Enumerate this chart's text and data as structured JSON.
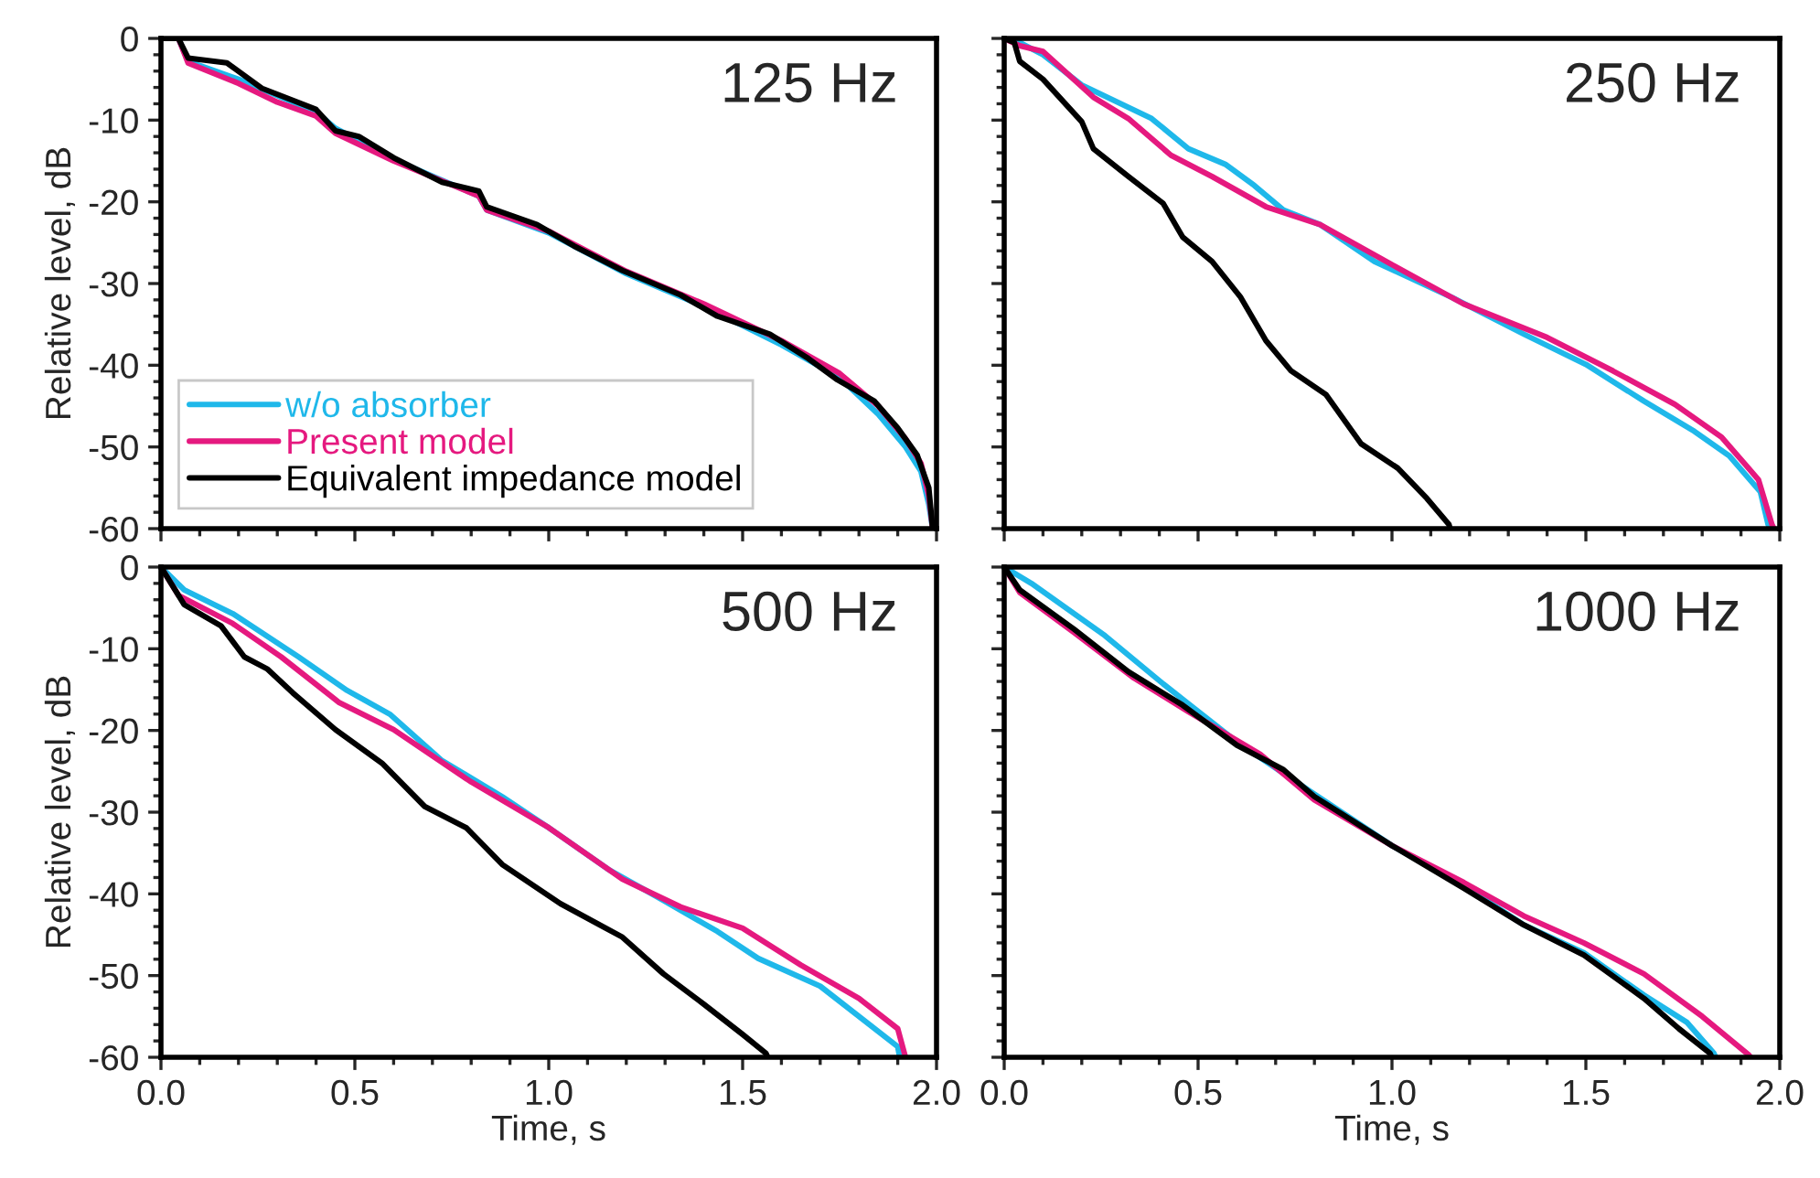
{
  "chart_data": [
    {
      "type": "line",
      "annotations": [
        "125 Hz"
      ],
      "ylabel": "Relative level, dB",
      "xlim": [
        0,
        2
      ],
      "ylim": [
        -60,
        0
      ],
      "xticks": [
        0,
        0.5,
        1,
        1.5,
        2
      ],
      "yticks": [
        -60,
        -50,
        -40,
        -30,
        -20,
        -10,
        0
      ],
      "tick_labels": "y",
      "legend": "bottom left",
      "series": [
        {
          "name": "w/o absorber",
          "color": "#1fb8ea",
          "x": [
            0,
            0.045,
            0.07,
            0.2,
            0.4,
            0.45,
            0.6,
            0.82,
            0.84,
            1.0,
            1.2,
            1.4,
            1.6,
            1.75,
            1.85,
            1.92,
            1.96,
            1.98,
            1.99
          ],
          "values": [
            0,
            0,
            -2.8,
            -5,
            -9,
            -11,
            -14.8,
            -19.3,
            -21,
            -23.8,
            -28.8,
            -32.8,
            -37.5,
            -41.5,
            -46,
            -50,
            -53,
            -57,
            -60
          ]
        },
        {
          "name": "Present model",
          "color": "#e5197f",
          "x": [
            0,
            0.045,
            0.07,
            0.2,
            0.3,
            0.4,
            0.45,
            0.6,
            0.82,
            0.84,
            1.0,
            1.2,
            1.4,
            1.6,
            1.75,
            1.85,
            1.92,
            1.96,
            1.98,
            1.99
          ],
          "values": [
            0,
            0,
            -3,
            -5.5,
            -7.8,
            -9.5,
            -11.6,
            -15,
            -19.3,
            -21,
            -23.6,
            -28.5,
            -32.5,
            -37,
            -41,
            -45,
            -49,
            -52,
            -56,
            -60
          ]
        },
        {
          "name": "Equivalent impedance model",
          "color": "#000000",
          "x": [
            0,
            0.045,
            0.07,
            0.17,
            0.26,
            0.4,
            0.45,
            0.51,
            0.6,
            0.725,
            0.82,
            0.84,
            0.97,
            1.065,
            1.19,
            1.34,
            1.435,
            1.57,
            1.67,
            1.745,
            1.84,
            1.9,
            1.95,
            1.98,
            1.99
          ],
          "values": [
            0,
            0,
            -2.4,
            -3,
            -6.1,
            -8.7,
            -11.3,
            -12,
            -14.6,
            -17.6,
            -18.7,
            -20.6,
            -22.8,
            -25.4,
            -28.4,
            -31.4,
            -34,
            -36.2,
            -39.2,
            -41.8,
            -44.4,
            -47.7,
            -51,
            -55,
            -60
          ]
        }
      ]
    },
    {
      "type": "line",
      "annotations": [
        "250 Hz"
      ],
      "xlim": [
        0,
        2
      ],
      "ylim": [
        -60,
        0
      ],
      "xticks": [
        0,
        0.5,
        1,
        1.5,
        2
      ],
      "yticks": [
        -60,
        -50,
        -40,
        -30,
        -20,
        -10,
        0
      ],
      "tick_labels": false,
      "series": [
        {
          "color": "#1fb8ea",
          "x": [
            0,
            0.04,
            0.1,
            0.2,
            0.38,
            0.475,
            0.57,
            0.645,
            0.72,
            0.815,
            0.955,
            1.155,
            1.34,
            1.5,
            1.65,
            1.78,
            1.87,
            1.95,
            1.97,
            1.975
          ],
          "values": [
            0,
            -0.5,
            -2,
            -5.7,
            -9.8,
            -13.5,
            -15.4,
            -18,
            -21,
            -22.8,
            -27.3,
            -31.7,
            -36.2,
            -39.9,
            -44.4,
            -48.1,
            -51.1,
            -55.5,
            -59.5,
            -60
          ]
        },
        {
          "color": "#e5197f",
          "x": [
            0,
            0.04,
            0.1,
            0.23,
            0.32,
            0.43,
            0.536,
            0.675,
            0.815,
            1.0,
            1.185,
            1.4,
            1.57,
            1.73,
            1.85,
            1.945,
            1.98,
            1.985
          ],
          "values": [
            0,
            -0.9,
            -1.6,
            -7.2,
            -9.8,
            -14.3,
            -16.9,
            -20.6,
            -22.8,
            -27.7,
            -32.5,
            -36.6,
            -40.7,
            -44.8,
            -48.8,
            -54,
            -59.5,
            -60
          ]
        },
        {
          "color": "#000000",
          "x": [
            0,
            0.026,
            0.04,
            0.1,
            0.2,
            0.23,
            0.32,
            0.41,
            0.46,
            0.536,
            0.61,
            0.675,
            0.74,
            0.83,
            0.92,
            1.015,
            1.09,
            1.147,
            1.15
          ],
          "values": [
            0,
            -0.5,
            -2.8,
            -5,
            -10.2,
            -13.5,
            -16.9,
            -20.2,
            -24.3,
            -27.3,
            -31.7,
            -37,
            -40.7,
            -43.6,
            -49.6,
            -52.6,
            -56.3,
            -59.5,
            -60
          ]
        }
      ]
    },
    {
      "type": "line",
      "annotations": [
        "500 Hz"
      ],
      "xlabel": "Time, s",
      "ylabel": "Relative level, dB",
      "xlim": [
        0,
        2
      ],
      "ylim": [
        -60,
        0
      ],
      "xticks": [
        {
          "value": 0,
          "label": "0.0"
        },
        {
          "value": 0.5,
          "label": "0.5"
        },
        {
          "value": 1,
          "label": "1.0"
        },
        {
          "value": 1.5,
          "label": "1.5"
        },
        {
          "value": 2,
          "label": "2.0"
        }
      ],
      "yticks": [
        -60,
        -50,
        -40,
        -30,
        -20,
        -10,
        0
      ],
      "series": [
        {
          "color": "#1fb8ea",
          "x": [
            0,
            0.06,
            0.185,
            0.355,
            0.48,
            0.59,
            0.725,
            0.88,
            1.0,
            1.157,
            1.296,
            1.435,
            1.54,
            1.7,
            1.9,
            1.905
          ],
          "values": [
            0,
            -2.8,
            -5.7,
            -11,
            -15.1,
            -18,
            -23.7,
            -28.1,
            -31.9,
            -37.1,
            -40.8,
            -44.6,
            -47.9,
            -51.3,
            -58.7,
            -60
          ]
        },
        {
          "color": "#e5197f",
          "x": [
            0,
            0.046,
            0.185,
            0.31,
            0.46,
            0.6,
            0.8,
            1.0,
            1.19,
            1.34,
            1.5,
            1.65,
            1.8,
            1.9,
            1.92
          ],
          "values": [
            0,
            -3.5,
            -6.9,
            -11,
            -16.6,
            -19.9,
            -26.3,
            -31.9,
            -38.2,
            -41.6,
            -44.2,
            -48.7,
            -52.8,
            -56.5,
            -60
          ]
        },
        {
          "color": "#000000",
          "x": [
            0,
            0.06,
            0.155,
            0.215,
            0.275,
            0.34,
            0.45,
            0.57,
            0.68,
            0.787,
            0.88,
            1.03,
            1.19,
            1.296,
            1.4,
            1.5,
            1.56,
            1.565
          ],
          "values": [
            0,
            -4.6,
            -7.2,
            -11,
            -12.5,
            -15.4,
            -19.9,
            -24,
            -29.3,
            -31.9,
            -36.4,
            -41.2,
            -45.3,
            -49.8,
            -53.5,
            -57.2,
            -59.5,
            -60
          ]
        }
      ]
    },
    {
      "type": "line",
      "annotations": [
        "1000 Hz"
      ],
      "xlabel": "Time, s",
      "xlim": [
        0,
        2
      ],
      "ylim": [
        -60,
        0
      ],
      "xticks": [
        {
          "value": 0,
          "label": "0.0"
        },
        {
          "value": 0.5,
          "label": "0.5"
        },
        {
          "value": 1,
          "label": "1.0"
        },
        {
          "value": 1.5,
          "label": "1.5"
        },
        {
          "value": 2,
          "label": "2.0"
        }
      ],
      "yticks": [
        -60,
        -50,
        -40,
        -30,
        -20,
        -10,
        0
      ],
      "tick_labels": "x",
      "series": [
        {
          "color": "#1fb8ea",
          "x": [
            0,
            0.07,
            0.26,
            0.41,
            0.6,
            0.8,
            1.0,
            1.185,
            1.34,
            1.495,
            1.65,
            1.76,
            1.83,
            1.835
          ],
          "values": [
            0,
            -2,
            -8.4,
            -14.3,
            -21.4,
            -27.8,
            -34.1,
            -39,
            -43.8,
            -47.2,
            -52.4,
            -55.7,
            -59.5,
            -60
          ]
        },
        {
          "color": "#e5197f",
          "x": [
            0,
            0.04,
            0.18,
            0.335,
            0.475,
            0.66,
            0.8,
            1.0,
            1.185,
            1.34,
            1.495,
            1.65,
            1.8,
            1.92,
            1.925
          ],
          "values": [
            0,
            -3.1,
            -8,
            -13.6,
            -17.7,
            -22.9,
            -28.5,
            -34.1,
            -38.6,
            -42.7,
            -46,
            -49.8,
            -55,
            -59.7,
            -60
          ]
        },
        {
          "color": "#000000",
          "x": [
            0,
            0.04,
            0.18,
            0.32,
            0.46,
            0.6,
            0.72,
            0.8,
            1.0,
            1.185,
            1.34,
            1.495,
            1.65,
            1.74,
            1.82,
            1.825
          ],
          "values": [
            0,
            -2.8,
            -7.6,
            -12.8,
            -16.9,
            -21.8,
            -24.8,
            -28.1,
            -34.1,
            -39.3,
            -43.8,
            -47.5,
            -52.8,
            -56.5,
            -59.5,
            -60
          ]
        }
      ]
    }
  ]
}
